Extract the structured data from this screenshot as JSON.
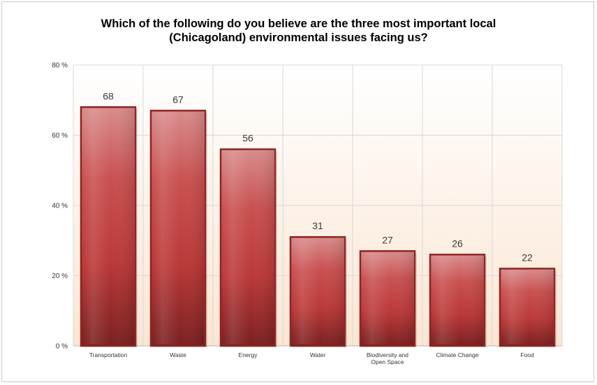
{
  "chart_data": {
    "type": "bar",
    "title_lines": [
      "Which of the following do you believe are the three most important local",
      "(Chicagoland) environmental issues facing us?"
    ],
    "categories": [
      [
        "Transportation"
      ],
      [
        "Waste"
      ],
      [
        "Energy"
      ],
      [
        "Water"
      ],
      [
        "Biodiversity and",
        "Open Space"
      ],
      [
        "Climate Change"
      ],
      [
        "Food"
      ]
    ],
    "values": [
      68,
      67,
      56,
      31,
      27,
      26,
      22
    ],
    "data_labels": [
      "68",
      "67",
      "56",
      "31",
      "27",
      "26",
      "22"
    ],
    "y_ticks": [
      0,
      20,
      40,
      60,
      80
    ],
    "y_tick_labels": [
      "0 %",
      "20 %",
      "40 %",
      "60 %",
      "80 %"
    ],
    "ylim": [
      0,
      80
    ],
    "xlabel": "",
    "ylabel": "",
    "grid": true,
    "legend": "none",
    "colors": {
      "bar_top": "#d98c8c",
      "bar_mid": "#c03a3a",
      "bar_bottom": "#7a1f1f",
      "bar_border": "#8e2525",
      "plot_bg_top": "#ffffff",
      "plot_bg_bottom": "#fbe6d2",
      "grid": "#d8d8d8"
    }
  }
}
